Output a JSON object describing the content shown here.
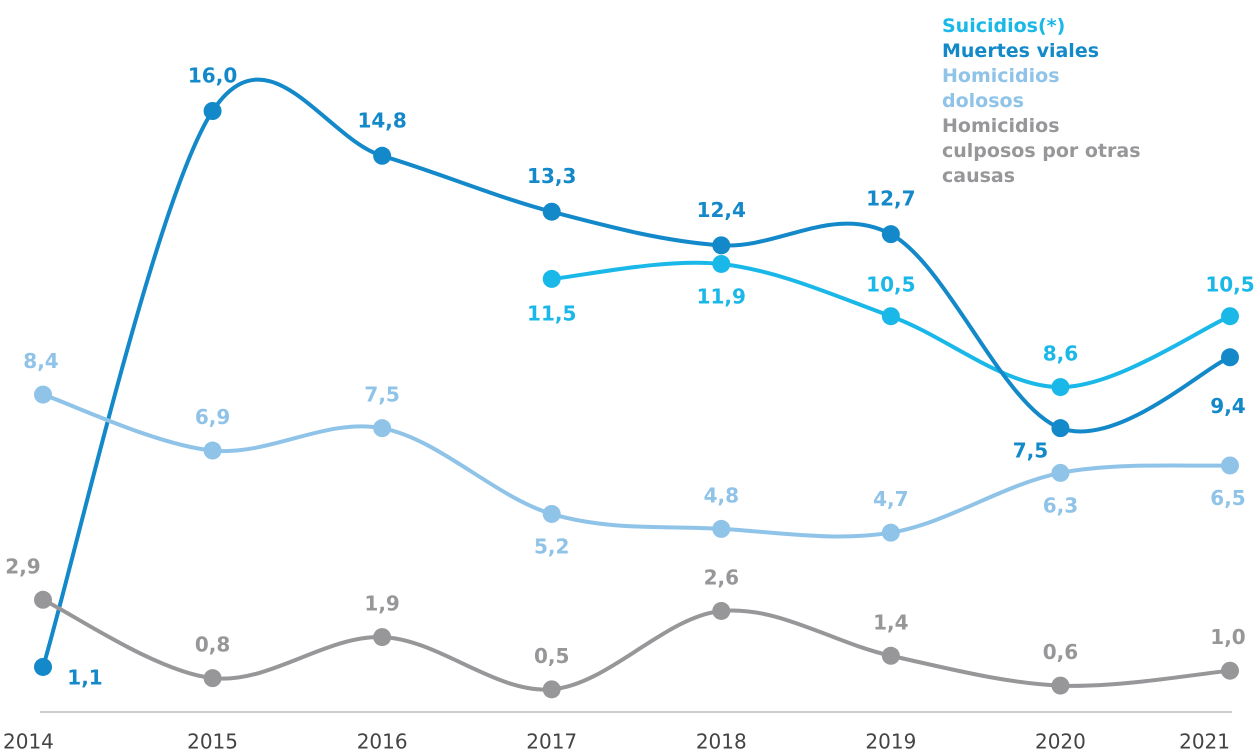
{
  "chart_data": {
    "type": "line",
    "categories": [
      "2014",
      "2015",
      "2016",
      "2017",
      "2018",
      "2019",
      "2020",
      "2021"
    ],
    "series": [
      {
        "name": "Suicidios(*)",
        "color": "#1ab8e8",
        "values": [
          null,
          null,
          null,
          11.5,
          11.9,
          10.5,
          8.6,
          10.5
        ],
        "value_labels": [
          null,
          null,
          null,
          "11,5",
          "11,9",
          "10,5",
          "8,6",
          "10,5"
        ]
      },
      {
        "name": "Muertes viales",
        "color": "#1389c9",
        "values": [
          1.1,
          16.0,
          14.8,
          13.3,
          12.4,
          12.7,
          7.5,
          9.4
        ],
        "value_labels": [
          "1,1",
          "16,0",
          "14,8",
          "13,3",
          "12,4",
          "12,7",
          "7,5",
          "9,4"
        ]
      },
      {
        "name": "Homicidios dolosos",
        "color": "#8fc3e8",
        "values": [
          8.4,
          6.9,
          7.5,
          5.2,
          4.8,
          4.7,
          6.3,
          6.5
        ],
        "value_labels": [
          "8,4",
          "6,9",
          "7,5",
          "5,2",
          "4,8",
          "4,7",
          "6,3",
          "6,5"
        ]
      },
      {
        "name": "Homicidios culposos por otras causas",
        "color": "#97979a",
        "values": [
          2.9,
          0.8,
          1.9,
          0.5,
          2.6,
          1.4,
          0.6,
          1.0
        ],
        "value_labels": [
          "2,9",
          "0,8",
          "1,9",
          "0,5",
          "2,6",
          "1,4",
          "0,6",
          "1,0"
        ]
      }
    ],
    "ylim": [
      0,
      16
    ],
    "legend": "upper right"
  }
}
